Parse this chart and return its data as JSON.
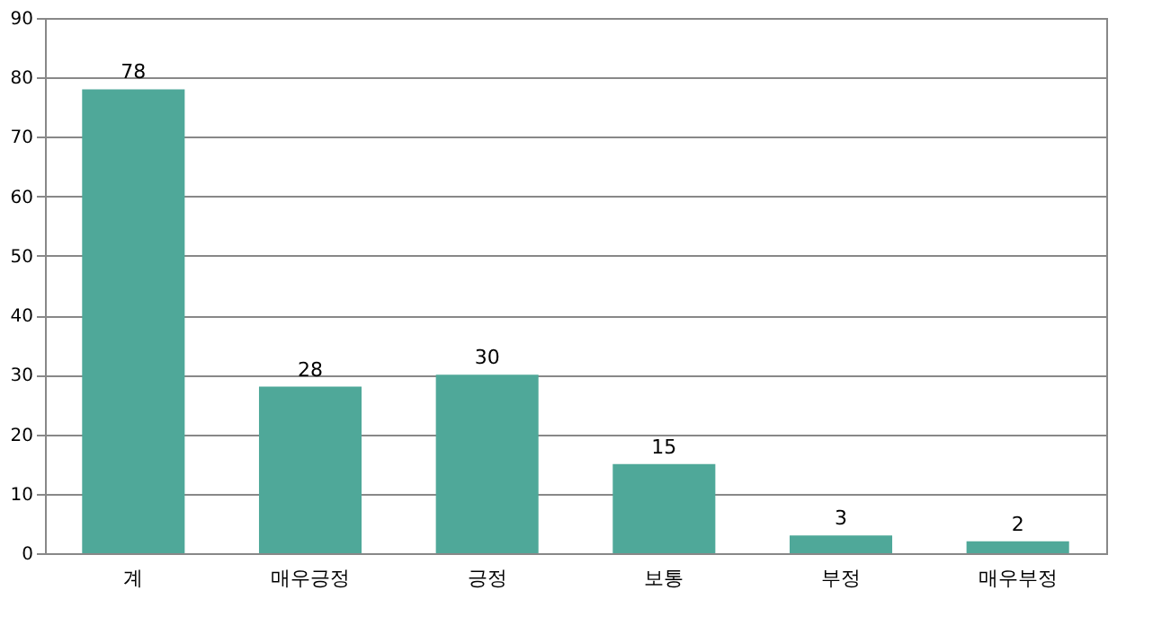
{
  "chart_data": {
    "type": "bar",
    "categories": [
      "계",
      "매우긍정",
      "긍정",
      "보통",
      "부정",
      "매우부정"
    ],
    "values": [
      78,
      28,
      30,
      15,
      3,
      2
    ],
    "color": "#4fa899",
    "ylim": [
      0,
      90
    ],
    "yticks": [
      0,
      10,
      20,
      30,
      40,
      50,
      60,
      70,
      80,
      90
    ],
    "grid": "y",
    "data_labels": true
  }
}
